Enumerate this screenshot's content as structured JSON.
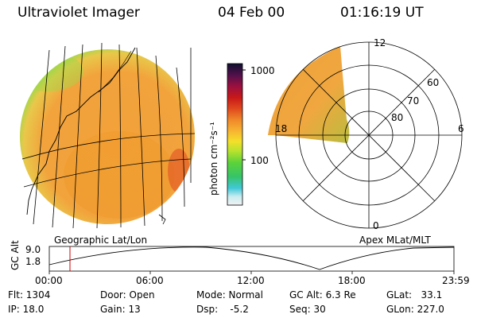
{
  "header": {
    "title": "Ultraviolet Imager",
    "date": "04 Feb 00",
    "time": "01:16:19 UT"
  },
  "left_panel": {
    "caption": "Geographic Lat/Lon"
  },
  "colorbar": {
    "label": "photon cm⁻²s⁻¹",
    "ticks": [
      "1000",
      "100"
    ],
    "scale": "log"
  },
  "polar_panel": {
    "caption": "Apex MLat/MLT",
    "mlt_labels": [
      "12",
      "18",
      "6",
      "0"
    ],
    "lat_labels": [
      "60",
      "70",
      "80"
    ]
  },
  "timeline": {
    "ylabel": "GC Alt",
    "y_ticks": [
      "9.0",
      "1.8"
    ],
    "x_ticks": [
      "00:00",
      "06:00",
      "12:00",
      "18:00",
      "23:59"
    ],
    "marker_time": "01:16"
  },
  "info": {
    "col1": [
      "Flt: 1304",
      "IP: 18.0"
    ],
    "col2": [
      "Door: Open",
      "Gain: 13"
    ],
    "col3": [
      "Mode: Normal",
      "Dsp:    -5.2"
    ],
    "col4": [
      "GC Alt: 6.3 Re",
      "Seq: 30"
    ],
    "col5": [
      "GLat:   33.1",
      "GLon: 227.0"
    ]
  },
  "colors": {
    "orange": "#f0a030",
    "deep_orange": "#e86a20",
    "green": "#6ccf40",
    "red_marker": "#cc0000"
  }
}
